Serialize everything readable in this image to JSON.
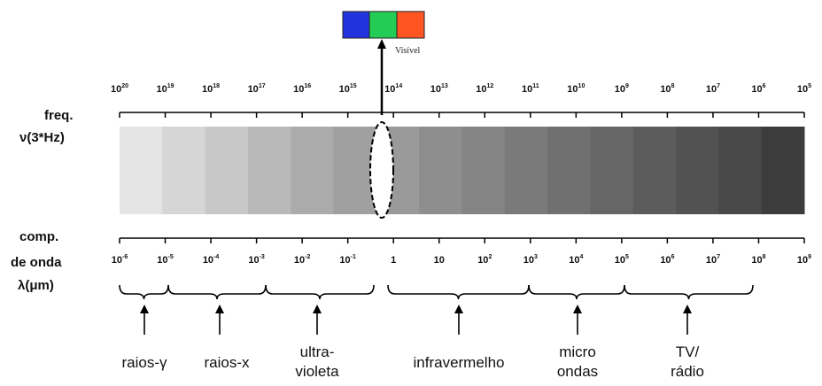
{
  "visible_label": "Visível",
  "visible_colors": [
    "#2233dd",
    "#22cc55",
    "#ff5522"
  ],
  "freq_label": {
    "line1": "freq.",
    "line2": "ν(3*Hz)"
  },
  "wavelength_label": {
    "line1": "comp.",
    "line2": "de onda",
    "line3": "λ(μm)"
  },
  "freq_ticks": [
    {
      "base": "10",
      "exp": "20"
    },
    {
      "base": "10",
      "exp": "19"
    },
    {
      "base": "10",
      "exp": "18"
    },
    {
      "base": "10",
      "exp": "17"
    },
    {
      "base": "10",
      "exp": "16"
    },
    {
      "base": "10",
      "exp": "15"
    },
    {
      "base": "10",
      "exp": "14"
    },
    {
      "base": "10",
      "exp": "13"
    },
    {
      "base": "10",
      "exp": "12"
    },
    {
      "base": "10",
      "exp": "11"
    },
    {
      "base": "10",
      "exp": "10"
    },
    {
      "base": "10",
      "exp": "9"
    },
    {
      "base": "10",
      "exp": "8"
    },
    {
      "base": "10",
      "exp": "7"
    },
    {
      "base": "10",
      "exp": "6"
    },
    {
      "base": "10",
      "exp": "5"
    }
  ],
  "wavelength_ticks": [
    {
      "base": "10",
      "exp": "-6"
    },
    {
      "base": "10",
      "exp": "-5"
    },
    {
      "base": "10",
      "exp": "-4"
    },
    {
      "base": "10",
      "exp": "-3"
    },
    {
      "base": "10",
      "exp": "-2"
    },
    {
      "base": "10",
      "exp": "-1"
    },
    {
      "base": "1",
      "exp": ""
    },
    {
      "base": "10",
      "exp": ""
    },
    {
      "base": "10",
      "exp": "2"
    },
    {
      "base": "10",
      "exp": "3"
    },
    {
      "base": "10",
      "exp": "4"
    },
    {
      "base": "10",
      "exp": "5"
    },
    {
      "base": "10",
      "exp": "6"
    },
    {
      "base": "10",
      "exp": "7"
    },
    {
      "base": "10",
      "exp": "8"
    },
    {
      "base": "10",
      "exp": "9"
    }
  ],
  "spectrum_grays": [
    "#e4e4e4",
    "#d6d6d6",
    "#c8c8c8",
    "#b9b9b9",
    "#ababab",
    "#a0a0a0",
    "#9a9a9a",
    "#8e8e8e",
    "#848484",
    "#7a7a7a",
    "#707070",
    "#666666",
    "#5c5c5c",
    "#525252",
    "#484848",
    "#3c3c3c"
  ],
  "bands": [
    {
      "lines": [
        "raios-γ"
      ]
    },
    {
      "lines": [
        "raios-x"
      ]
    },
    {
      "lines": [
        "ultra-",
        "violeta"
      ]
    },
    {
      "lines": [
        "infravermelho"
      ]
    },
    {
      "lines": [
        "micro",
        "ondas"
      ]
    },
    {
      "lines": [
        "TV/",
        "rádio"
      ]
    }
  ]
}
